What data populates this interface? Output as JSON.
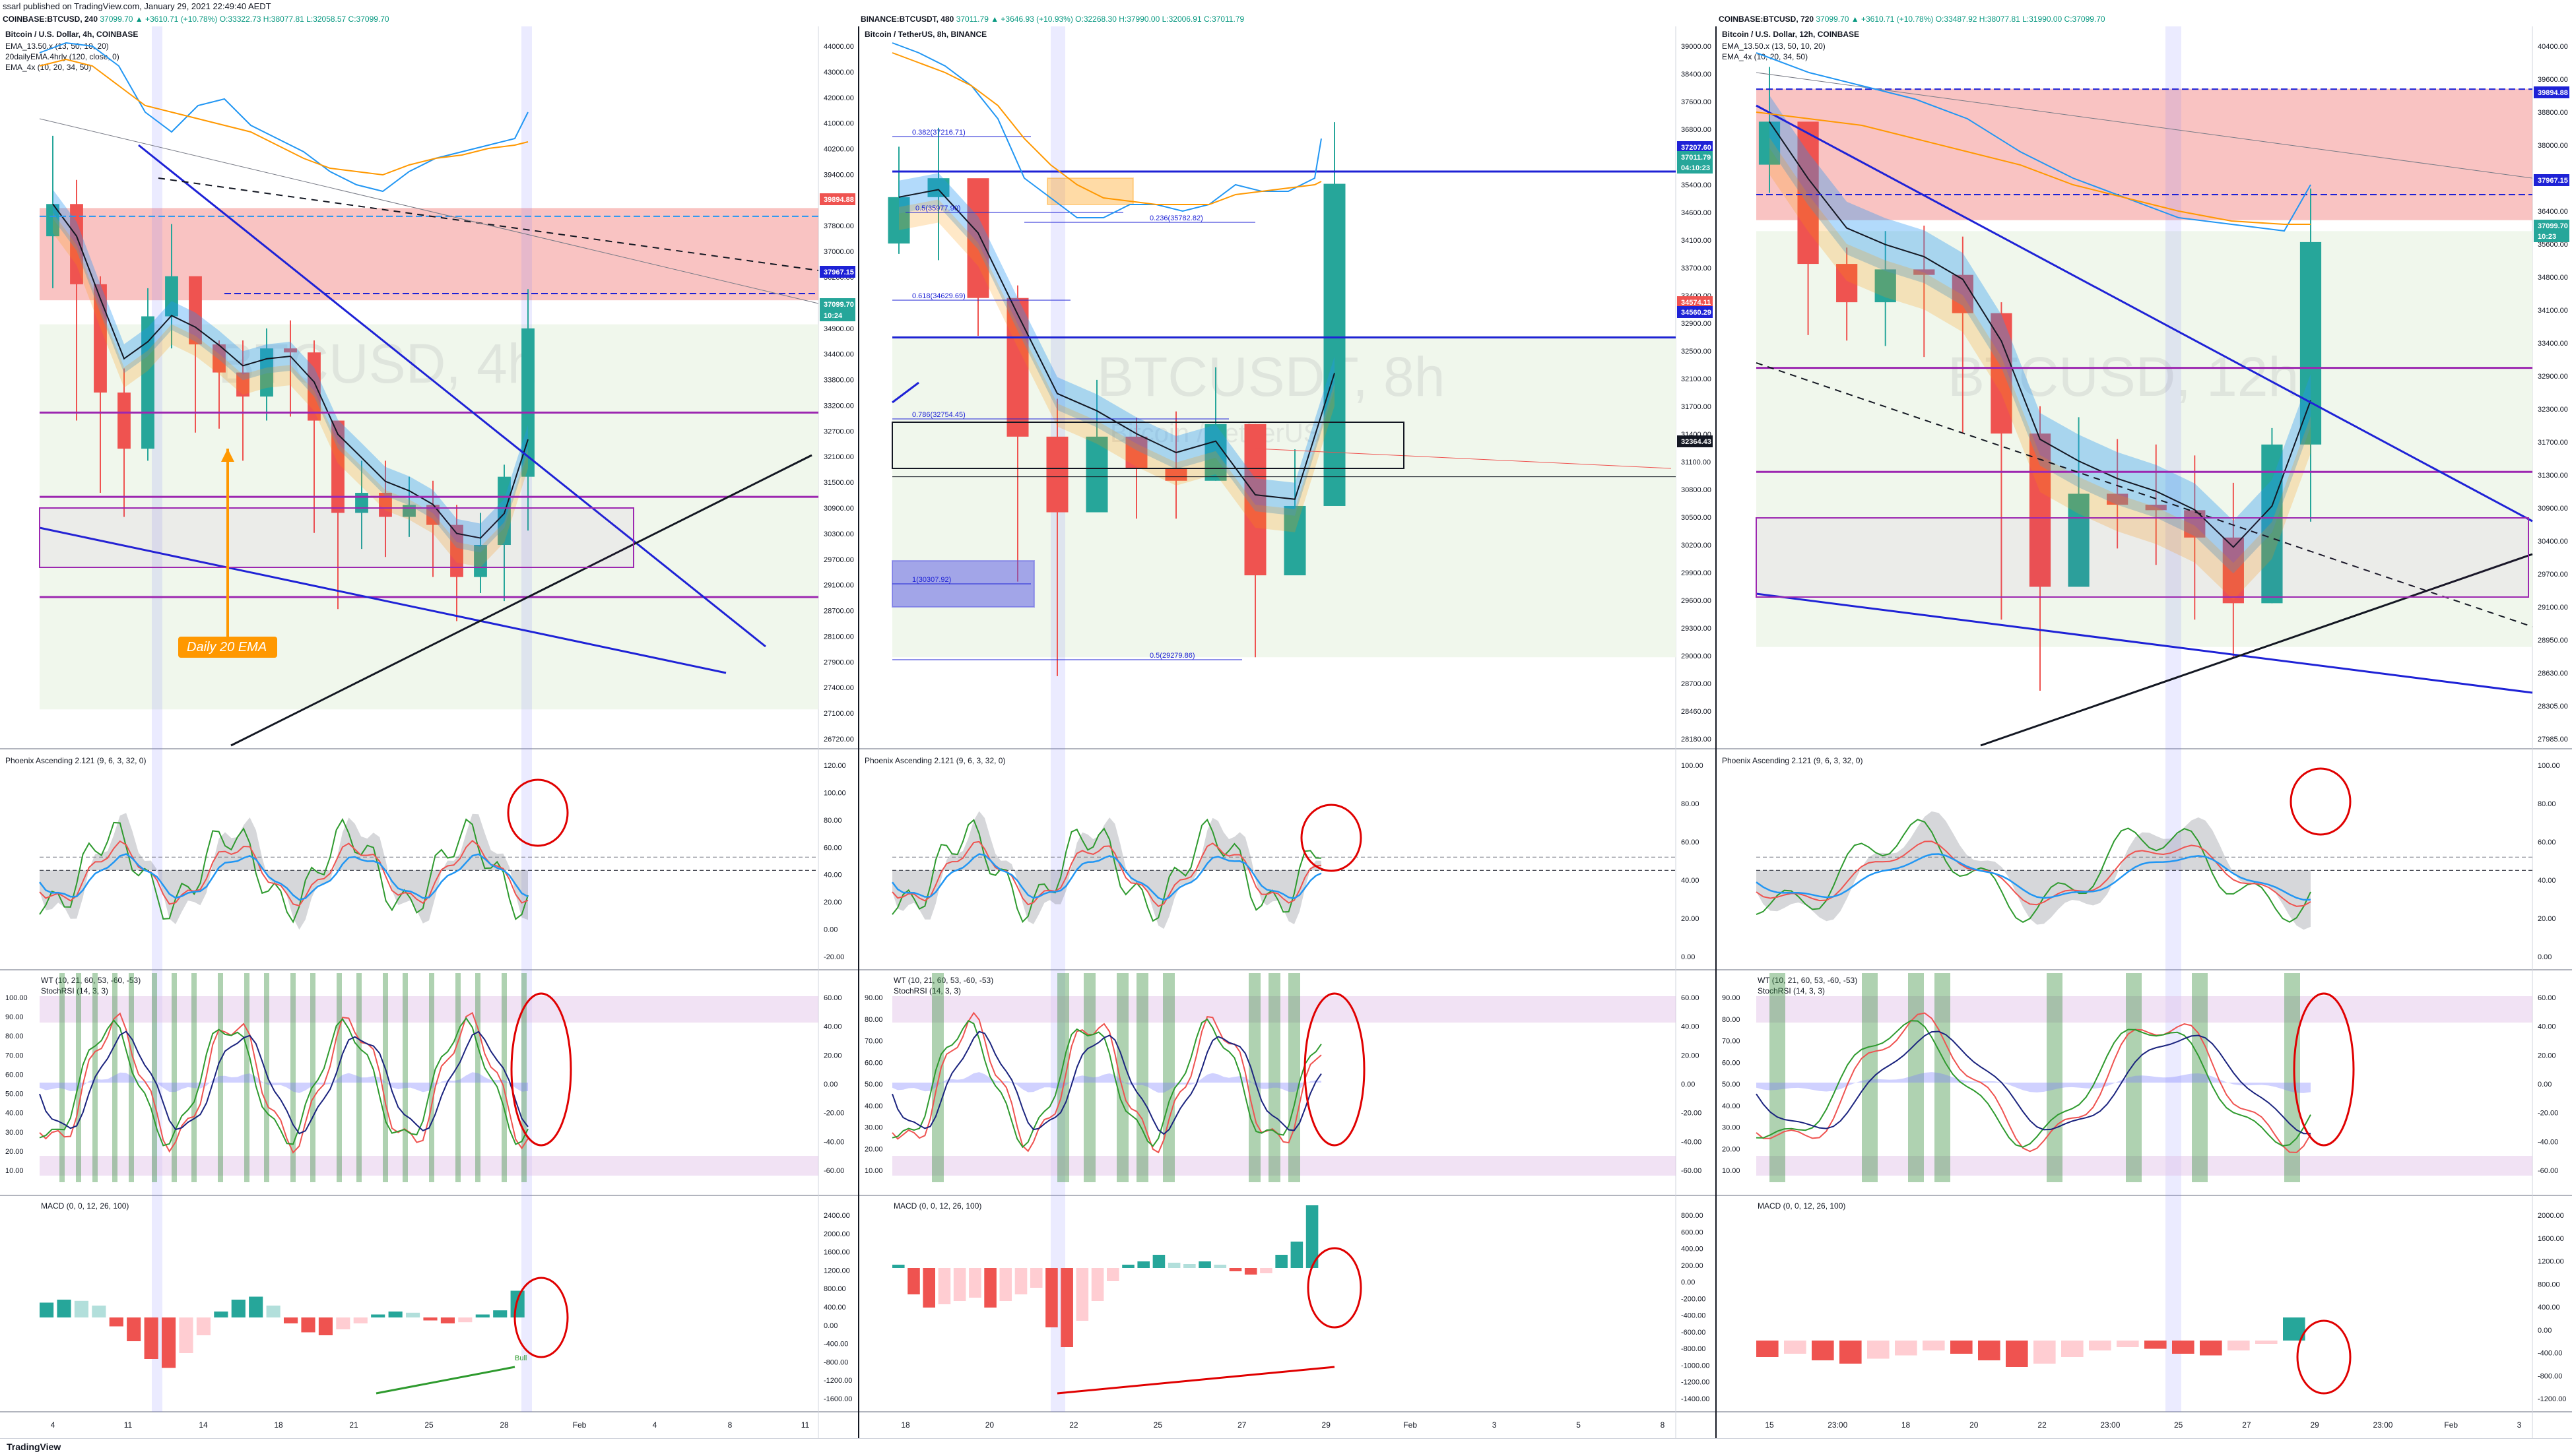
{
  "published": "ssarl published on TradingView.com, January 29, 2021 22:49:40 AEDT",
  "brand": "TradingView",
  "headers": [
    {
      "sym": "COINBASE:BTCUSD, 240",
      "vals": "37099.70 ▲ +3610.71 (+10.78%) O:33322.73 H:38077.81 L:32058.57 C:37099.70"
    },
    {
      "sym": "BINANCE:BTCUSDT, 480",
      "vals": "37011.79 ▲ +3646.93 (+10.93%) O:32268.30 H:37990.00 L:32006.91 C:37011.79"
    },
    {
      "sym": "COINBASE:BTCUSD, 720",
      "vals": "37099.70 ▲ +3610.71 (+10.78%) O:33487.92 H:38077.81 L:31990.00 C:37099.70"
    }
  ],
  "colors": {
    "up": "#26a69a",
    "down": "#ef5350",
    "ema_blue": "#2196f3",
    "ema_orange": "#ff9800",
    "purple": "#9c27b0",
    "line_blue": "#1e22d6",
    "annot_red": "#e00000",
    "phoenix_green": "#2e9a2e"
  },
  "panels": [
    {
      "title": "Bitcoin / U.S. Dollar, 4h, COINBASE",
      "watermark": "BTCUSD, 4h",
      "legend": [
        "EMA_13.50.x (13, 50, 10, 20)",
        "20dailyEMA.4hrly (120, close, 0)",
        "EMA_4x (10, 20, 34, 50)"
      ],
      "annotation": "Daily 20 EMA",
      "bull_label": "Bull",
      "price_ticks": [
        "44000.00",
        "43000.00",
        "42000.00",
        "41000.00",
        "40200.00",
        "39400.00",
        "38600.00",
        "37800.00",
        "37000.00",
        "36200.00",
        "35400.00",
        "34900.00",
        "34400.00",
        "33800.00",
        "33200.00",
        "32700.00",
        "32100.00",
        "31500.00",
        "30900.00",
        "30300.00",
        "29700.00",
        "29100.00",
        "28700.00",
        "28100.00",
        "27900.00",
        "27400.00",
        "27100.00",
        "26720.00"
      ],
      "price_labels": [
        {
          "text": "39894.88",
          "color": "#ef5350"
        },
        {
          "text": "37967.15",
          "color": "#1e22d6"
        },
        {
          "text": "37099.70",
          "color": "#26a69a"
        },
        {
          "text": "10:24",
          "color": "#26a69a"
        }
      ],
      "osc1_title": "Phoenix Ascending 2.121 (9, 6, 3, 32, 0)",
      "osc1_ticks": [
        "120.00",
        "100.00",
        "80.00",
        "60.00",
        "40.00",
        "20.00",
        "0.00",
        "-20.00"
      ],
      "osc2_title": "WT (10, 21, 60, 53, -60, -53)",
      "osc2_sub": "StochRSI (14, 3, 3)",
      "osc2_left_ticks": [
        "100.00",
        "90.00",
        "80.00",
        "70.00",
        "60.00",
        "50.00",
        "40.00",
        "30.00",
        "20.00",
        "10.00"
      ],
      "osc2_right_ticks": [
        "60.00",
        "40.00",
        "20.00",
        "0.00",
        "-20.00",
        "-40.00",
        "-60.00"
      ],
      "macd_title": "MACD (0, 0, 12, 26, 100)",
      "macd_ticks": [
        "2400.00",
        "2000.00",
        "1600.00",
        "1200.00",
        "800.00",
        "400.00",
        "0.00",
        "-400.00",
        "-800.00",
        "-1200.00",
        "-1600.00"
      ],
      "date_ticks": [
        "4",
        "11",
        "14",
        "18",
        "21",
        "25",
        "28",
        "Feb",
        "4",
        "8",
        "11"
      ]
    },
    {
      "title": "Bitcoin / TetherUS, 8h, BINANCE",
      "watermark": "BTCUSDT, 8h",
      "watermark2": "Bitcoin / TetherUS",
      "fib_labels": [
        "0.382(37216.71)",
        "0.5(35977.90)",
        "0.236(35782.82)",
        "0.618(34629.69)",
        "0.786(32754.45)",
        "1(30307.92)",
        "0.5(29279.86)"
      ],
      "price_ticks": [
        "39000.00",
        "38400.00",
        "37600.00",
        "36800.00",
        "36000.00",
        "35400.00",
        "34600.00",
        "34100.00",
        "33700.00",
        "33400.00",
        "32900.00",
        "32500.00",
        "32100.00",
        "31700.00",
        "31400.00",
        "31100.00",
        "30800.00",
        "30500.00",
        "30200.00",
        "29900.00",
        "29600.00",
        "29300.00",
        "29000.00",
        "28700.00",
        "28460.00",
        "28180.00"
      ],
      "price_labels": [
        {
          "text": "37207.60",
          "color": "#1e22d6"
        },
        {
          "text": "37011.79",
          "color": "#26a69a"
        },
        {
          "text": "04:10:23",
          "color": "#26a69a"
        },
        {
          "text": "34574.11",
          "color": "#ef5350"
        },
        {
          "text": "34560.29",
          "color": "#1e22d6"
        },
        {
          "text": "32364.43",
          "color": "#131722"
        }
      ],
      "osc1_title": "Phoenix Ascending 2.121 (9, 6, 3, 32, 0)",
      "osc1_ticks": [
        "100.00",
        "80.00",
        "60.00",
        "40.00",
        "20.00",
        "0.00"
      ],
      "osc2_title": "WT (10, 21, 60, 53, -60, -53)",
      "osc2_sub": "StochRSI (14, 3, 3)",
      "osc2_left_ticks": [
        "90.00",
        "80.00",
        "70.00",
        "60.00",
        "50.00",
        "40.00",
        "30.00",
        "20.00",
        "10.00"
      ],
      "osc2_right_ticks": [
        "60.00",
        "40.00",
        "20.00",
        "0.00",
        "-20.00",
        "-40.00",
        "-60.00"
      ],
      "macd_title": "MACD (0, 0, 12, 26, 100)",
      "macd_ticks": [
        "800.00",
        "600.00",
        "400.00",
        "200.00",
        "0.00",
        "-200.00",
        "-400.00",
        "-600.00",
        "-800.00",
        "-1000.00",
        "-1200.00",
        "-1400.00"
      ],
      "date_ticks": [
        "18",
        "20",
        "22",
        "25",
        "27",
        "29",
        "Feb",
        "3",
        "5",
        "8"
      ]
    },
    {
      "title": "Bitcoin / U.S. Dollar, 12h, COINBASE",
      "watermark": "BTCUSD, 12h",
      "legend": [
        "EMA_13.50.x (13, 50, 10, 20)",
        "EMA_4x (10, 20, 34, 50)"
      ],
      "price_ticks": [
        "40400.00",
        "39600.00",
        "38800.00",
        "38000.00",
        "37200.00",
        "36400.00",
        "35600.00",
        "34800.00",
        "34100.00",
        "33400.00",
        "32900.00",
        "32300.00",
        "31700.00",
        "31300.00",
        "30900.00",
        "30400.00",
        "29700.00",
        "29100.00",
        "28950.00",
        "28630.00",
        "28305.00",
        "27985.00"
      ],
      "price_labels": [
        {
          "text": "39894.88",
          "color": "#1e22d6"
        },
        {
          "text": "37967.15",
          "color": "#1e22d6"
        },
        {
          "text": "37099.70",
          "color": "#26a69a"
        },
        {
          "text": "10:23",
          "color": "#26a69a"
        }
      ],
      "osc1_title": "Phoenix Ascending 2.121 (9, 6, 3, 32, 0)",
      "osc1_ticks": [
        "100.00",
        "80.00",
        "60.00",
        "40.00",
        "20.00",
        "0.00"
      ],
      "osc2_title": "WT (10, 21, 60, 53, -60, -53)",
      "osc2_sub": "StochRSI (14, 3, 3)",
      "osc2_left_ticks": [
        "90.00",
        "80.00",
        "70.00",
        "60.00",
        "50.00",
        "40.00",
        "30.00",
        "20.00",
        "10.00"
      ],
      "osc2_right_ticks": [
        "60.00",
        "40.00",
        "20.00",
        "0.00",
        "-20.00",
        "-40.00",
        "-60.00"
      ],
      "macd_title": "MACD (0, 0, 12, 26, 100)",
      "macd_ticks": [
        "2000.00",
        "1600.00",
        "1200.00",
        "800.00",
        "400.00",
        "0.00",
        "-400.00",
        "-800.00",
        "-1200.00"
      ],
      "date_ticks": [
        "15",
        "23:00",
        "18",
        "20",
        "22",
        "23:00",
        "25",
        "27",
        "29",
        "23:00",
        "Feb",
        "3"
      ]
    }
  ],
  "chart_data": [
    {
      "type": "candlestick",
      "title": "Bitcoin / U.S. Dollar, 4h, COINBASE",
      "x": [
        "9",
        "10",
        "11",
        "12",
        "13",
        "14",
        "15",
        "16",
        "17",
        "18",
        "19",
        "20",
        "21",
        "22",
        "23",
        "24",
        "25",
        "26",
        "27",
        "28",
        "29"
      ],
      "close": [
        40200,
        38200,
        35500,
        34100,
        37400,
        38400,
        36700,
        36000,
        35400,
        36600,
        36500,
        34800,
        32500,
        33000,
        32400,
        32700,
        32200,
        30900,
        31700,
        33400,
        37100
      ],
      "high": [
        41900,
        40800,
        38400,
        36100,
        38100,
        39700,
        38300,
        36800,
        36800,
        37100,
        37300,
        36800,
        34600,
        33800,
        33800,
        33400,
        33300,
        32700,
        32500,
        33700,
        38078
      ],
      "low": [
        38100,
        34800,
        33000,
        32400,
        33800,
        36600,
        34500,
        34600,
        33800,
        34800,
        34900,
        32000,
        30100,
        31600,
        31400,
        31900,
        30900,
        29800,
        30500,
        30300,
        32058
      ]
    },
    {
      "type": "candlestick",
      "title": "Bitcoin / TetherUS, 8h, BINANCE",
      "x": [
        "18",
        "19",
        "20",
        "21",
        "22",
        "23",
        "24",
        "25",
        "26",
        "27",
        "28",
        "29"
      ],
      "close": [
        36800,
        37100,
        35200,
        33000,
        31800,
        33000,
        32500,
        32300,
        33200,
        30800,
        31900,
        37012
      ],
      "high": [
        37600,
        37900,
        36600,
        35400,
        33600,
        33900,
        33300,
        33400,
        34100,
        33200,
        32800,
        37990
      ],
      "low": [
        35900,
        35800,
        34600,
        30700,
        29200,
        31900,
        31700,
        31700,
        32300,
        29500,
        30900,
        32007
      ]
    },
    {
      "type": "candlestick",
      "title": "Bitcoin / U.S. Dollar, 12h, COINBASE",
      "x": [
        "15",
        "16",
        "17",
        "18",
        "19",
        "20",
        "21",
        "22",
        "23",
        "24",
        "25",
        "26",
        "27",
        "28",
        "29"
      ],
      "close": [
        39300,
        36700,
        36000,
        36600,
        36500,
        35800,
        33600,
        30800,
        32500,
        32300,
        32200,
        31700,
        30500,
        33400,
        37100
      ],
      "high": [
        40300,
        38400,
        37000,
        37300,
        37400,
        37200,
        36000,
        34100,
        33900,
        33500,
        33400,
        33200,
        32700,
        33700,
        38078
      ],
      "low": [
        38000,
        35400,
        35300,
        35200,
        35000,
        33600,
        30200,
        28900,
        31400,
        31500,
        31200,
        30200,
        29500,
        30500,
        31990
      ]
    }
  ]
}
